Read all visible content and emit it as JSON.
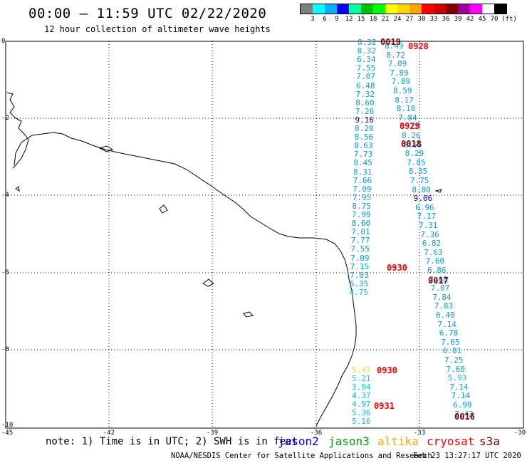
{
  "title": "00:00 – 11:59 UTC 02/22/2020",
  "subtitle": "12 hour collection of altimeter wave heights",
  "scale": {
    "unit": "(ft)",
    "labels": [
      "3",
      "6",
      "9",
      "12",
      "15",
      "18",
      "21",
      "24",
      "27",
      "30",
      "33",
      "36",
      "39",
      "42",
      "45",
      "70"
    ],
    "colors": [
      "#7f7f7f",
      "#00ffff",
      "#00b0ff",
      "#0000ff",
      "#00ffa0",
      "#00c000",
      "#00ff00",
      "#ffff00",
      "#ffd700",
      "#ffa500",
      "#ff0000",
      "#d00000",
      "#800000",
      "#a000a0",
      "#ff00ff",
      "#ffffff",
      "#000000"
    ]
  },
  "axes": {
    "xticks": [
      "-45",
      "-42",
      "-39",
      "-36",
      "-33",
      "-30"
    ],
    "yticks": [
      "0",
      "-2",
      "-4",
      "-6",
      "-8",
      "-10"
    ]
  },
  "track1": {
    "values": [
      "8.32",
      "8.32",
      "6.34",
      "7.55",
      "7.07",
      "6.48",
      "7.32",
      "8.60",
      "7.26",
      "9.16",
      "8.20",
      "8.56",
      "8.63",
      "7.73",
      "8.45",
      "8.31",
      "7.66",
      "7.09",
      "7.95",
      "8.75",
      "7.99",
      "8.60",
      "7.01",
      "7.77",
      "7.55",
      "7.09",
      "7.15",
      "7.03",
      "6.35",
      "4.75"
    ]
  },
  "track2": {
    "values": [
      "8.49",
      "8.72",
      "7.09",
      "7.89",
      "7.89",
      "8.59",
      "8.17",
      "8.18",
      "7.84",
      "8.12",
      "8.26",
      "8.55",
      "8.29",
      "7.85",
      "8.35",
      "7.75",
      "8.80",
      "9.06",
      "6.96",
      "7.17",
      "7.31",
      "7.36",
      "6.82",
      "7.63",
      "7.60",
      "6.86",
      "7.68",
      "7.07",
      "7.84",
      "7.83",
      "6.40",
      "7.14",
      "6.78",
      "7.65",
      "6.81",
      "7.25",
      "7.60",
      "5.93",
      "7.14",
      "7.14",
      "6.99",
      "7.43"
    ]
  },
  "track3": {
    "values": [
      "5.47",
      "5.21",
      "3.94",
      "4.37",
      "4.97",
      "5.36",
      "5.16"
    ]
  },
  "times": [
    {
      "label": "0019",
      "color": "#800000"
    },
    {
      "label": "0928",
      "color": "#ff0000"
    },
    {
      "label": "0929",
      "color": "#ff0000"
    },
    {
      "label": "0018",
      "color": "#800000"
    },
    {
      "label": "0930",
      "color": "#ff0000"
    },
    {
      "label": "0017",
      "color": "#800000"
    },
    {
      "label": "0930",
      "color": "#ff0000"
    },
    {
      "label": "0931",
      "color": "#ff0000"
    },
    {
      "label": "0016",
      "color": "#800000"
    }
  ],
  "footer": {
    "note": "note: 1) Time is in UTC; 2) SWH is in feet",
    "satellites": [
      {
        "name": "jason2",
        "color": "#0000ff"
      },
      {
        "name": "jason3",
        "color": "#00a000"
      },
      {
        "name": "altika",
        "color": "#ffa500"
      },
      {
        "name": "cryosat",
        "color": "#ff0000"
      },
      {
        "name": "s3a",
        "color": "#800000"
      }
    ],
    "credit": "NOAA/NESDIS Center for Satellite Applications and Research",
    "timestamp": "Feb 23 13:27:17 UTC 2020"
  }
}
